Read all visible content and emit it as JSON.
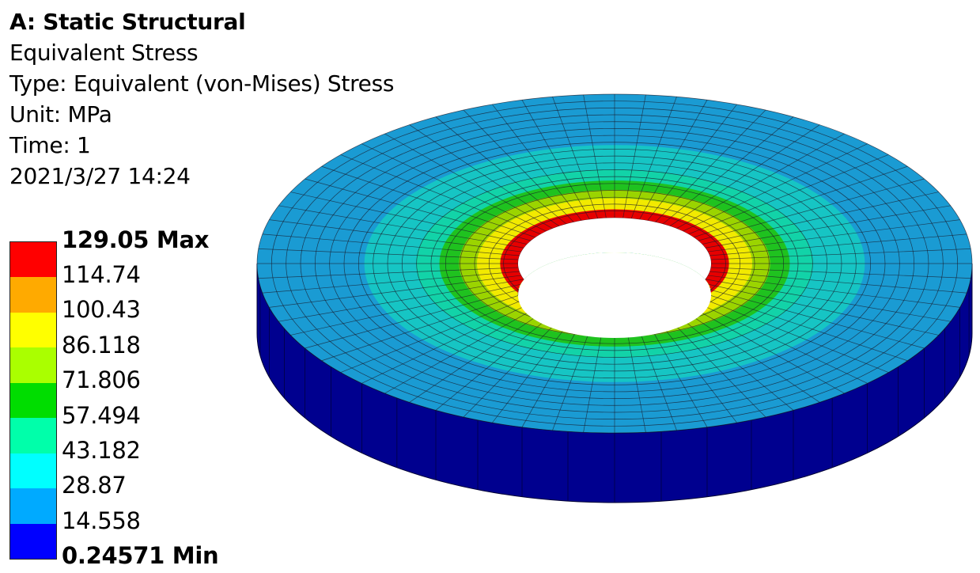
{
  "header": {
    "title": "A: Static Structural",
    "result": "Equivalent Stress",
    "type": "Type: Equivalent (von-Mises) Stress",
    "unit": "Unit: MPa",
    "time": "Time: 1",
    "date": "2021/3/27 14:24"
  },
  "legend": {
    "labels": [
      "129.05 Max",
      "114.74",
      "100.43",
      "86.118",
      "71.806",
      "57.494",
      "43.182",
      "28.87",
      "14.558",
      "0.24571 Min"
    ],
    "colors": [
      "#ff0000",
      "#ffaa00",
      "#ffff00",
      "#aaff00",
      "#00dd00",
      "#00ffaa",
      "#00ffff",
      "#00aaff",
      "#0000ff"
    ]
  },
  "model": {
    "shape": "annular disc",
    "band_colors_inner_to_outer": [
      "#e60000",
      "#f2ea00",
      "#9bd400",
      "#1fc21f",
      "#12d3a8",
      "#16c5c4",
      "#1a9bd3"
    ],
    "side_color": "#00008f",
    "hole_wall_colors": [
      "#0000ff",
      "#00aaff",
      "#00ffff",
      "#ffff00"
    ]
  }
}
